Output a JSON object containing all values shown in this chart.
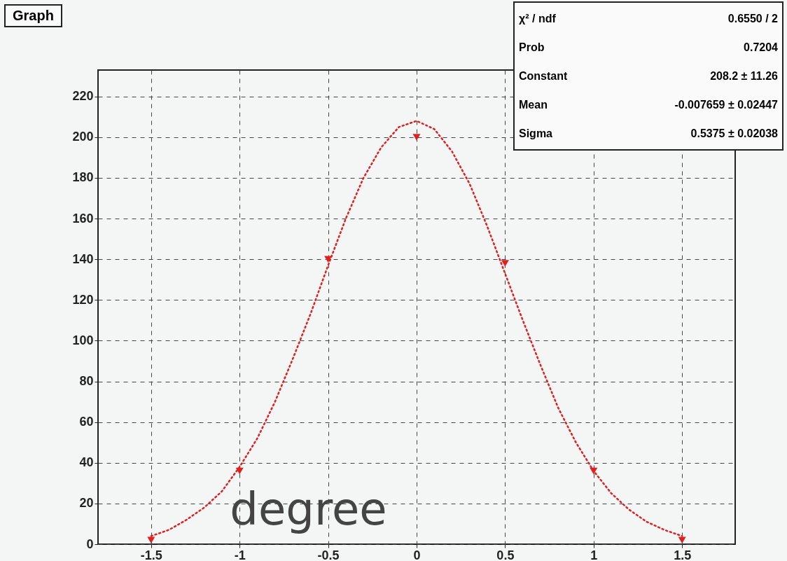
{
  "chart_data": {
    "type": "scatter",
    "title": "Graph",
    "xlabel": "degree",
    "marker": "triangle",
    "grid": true,
    "xlim": [
      -1.8,
      1.8
    ],
    "ylim": [
      0,
      233
    ],
    "xticks": [
      -1.5,
      -1,
      -0.5,
      0,
      0.5,
      1,
      1.5
    ],
    "yticks": [
      0,
      20,
      40,
      60,
      80,
      100,
      120,
      140,
      160,
      180,
      200,
      220
    ],
    "series": [
      {
        "color": "#e02020",
        "x": [
          -1.5,
          -1,
          -0.5,
          0,
          0.5,
          1,
          1.5
        ],
        "values": [
          2,
          36,
          140,
          200,
          138,
          36,
          2
        ]
      },
      {
        "type": "line",
        "color": "#e02020",
        "marker": "none",
        "line_style": "dotted",
        "x": [
          -1.5,
          -1.4,
          -1.3,
          -1.2,
          -1.1,
          -1,
          -0.9,
          -0.8,
          -0.7,
          -0.6,
          -0.5,
          -0.4,
          -0.3,
          -0.2,
          -0.1,
          0,
          0.1,
          0.2,
          0.3,
          0.4,
          0.5,
          0.6,
          0.7,
          0.8,
          0.9,
          1,
          1.1,
          1.2,
          1.3,
          1.4,
          1.5
        ],
        "values": [
          4,
          7,
          12,
          18,
          26,
          38,
          52,
          70,
          91,
          113,
          137,
          160,
          180,
          195,
          205,
          208,
          204,
          193,
          177,
          156,
          133,
          110,
          88,
          67,
          50,
          36,
          25,
          17,
          11,
          7,
          4
        ]
      }
    ],
    "annotations": [
      "χ² / ndf",
      "0.6550 / 2",
      "Prob",
      "0.7204",
      "Constant",
      "208.2 ± 11.26",
      "Mean",
      "-0.007659 ± 0.02447",
      "Sigma",
      "0.5375 ± 0.02038"
    ]
  }
}
